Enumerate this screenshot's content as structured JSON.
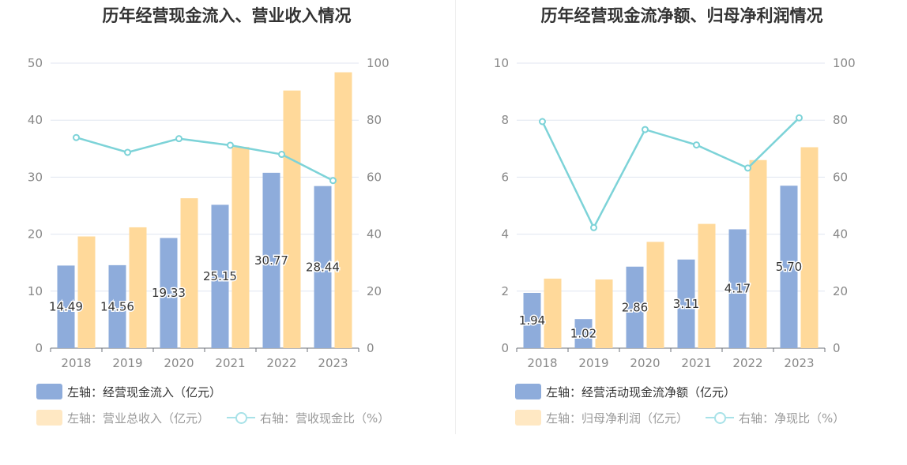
{
  "colors": {
    "bar_primary": "#8eacdb",
    "bar_secondary": "#ffd99a",
    "line": "#7dd3d8",
    "grid": "#e0e6f1",
    "axis_text": "#888888"
  },
  "left": {
    "title": "历年经营现金流入、营业收入情况",
    "legend": {
      "bar1": "左轴：经营现金流入（亿元）",
      "bar2": "左轴：营业总收入（亿元）",
      "line": "右轴：营收现金比（%）"
    }
  },
  "right": {
    "title": "历年经营现金流净额、归母净利润情况",
    "legend": {
      "bar1": "左轴：经营活动现金流净额（亿元）",
      "bar2": "左轴：归母净利润（亿元）",
      "line": "右轴：净现比（%）"
    }
  },
  "chart_data": [
    {
      "type": "bar",
      "title": "历年经营现金流入、营业收入情况",
      "categories": [
        "2018",
        "2019",
        "2020",
        "2021",
        "2022",
        "2023"
      ],
      "left_axis": {
        "ylim": [
          0,
          50
        ],
        "ticks": [
          "0",
          "10",
          "20",
          "30",
          "40",
          "50"
        ]
      },
      "right_axis": {
        "ylim": [
          0,
          100
        ],
        "ticks": [
          "0",
          "20",
          "40",
          "60",
          "80",
          "100"
        ]
      },
      "series": [
        {
          "name": "左轴：经营现金流入（亿元）",
          "axis": "left",
          "kind": "bar",
          "values": [
            14.49,
            14.56,
            19.33,
            25.15,
            30.77,
            28.44
          ],
          "labels": [
            "14.49",
            "14.56",
            "19.33",
            "25.15",
            "30.77",
            "28.44"
          ]
        },
        {
          "name": "左轴：营业总收入（亿元）",
          "axis": "left",
          "kind": "bar",
          "values": [
            19.6,
            21.2,
            26.3,
            35.3,
            45.2,
            48.4
          ]
        },
        {
          "name": "右轴：营收现金比（%）",
          "axis": "right",
          "kind": "line",
          "values": [
            73.9,
            68.7,
            73.5,
            71.2,
            68.0,
            58.8
          ]
        }
      ],
      "grid": true
    },
    {
      "type": "bar",
      "title": "历年经营现金流净额、归母净利润情况",
      "categories": [
        "2018",
        "2019",
        "2020",
        "2021",
        "2022",
        "2023"
      ],
      "left_axis": {
        "ylim": [
          0,
          10
        ],
        "ticks": [
          "0",
          "2",
          "4",
          "6",
          "8",
          "10"
        ]
      },
      "right_axis": {
        "ylim": [
          0,
          100
        ],
        "ticks": [
          "0",
          "20",
          "40",
          "60",
          "80",
          "100"
        ]
      },
      "series": [
        {
          "name": "左轴：经营活动现金流净额（亿元）",
          "axis": "left",
          "kind": "bar",
          "values": [
            1.94,
            1.02,
            2.86,
            3.11,
            4.17,
            5.7
          ],
          "labels": [
            "1.94",
            "1.02",
            "2.86",
            "3.11",
            "4.17",
            "5.70"
          ]
        },
        {
          "name": "左轴：归母净利润（亿元）",
          "axis": "left",
          "kind": "bar",
          "values": [
            2.44,
            2.41,
            3.73,
            4.36,
            6.6,
            7.05
          ]
        },
        {
          "name": "右轴：净现比（%）",
          "axis": "right",
          "kind": "line",
          "values": [
            79.5,
            42.3,
            76.7,
            71.3,
            63.2,
            80.8
          ]
        }
      ],
      "grid": true
    }
  ]
}
